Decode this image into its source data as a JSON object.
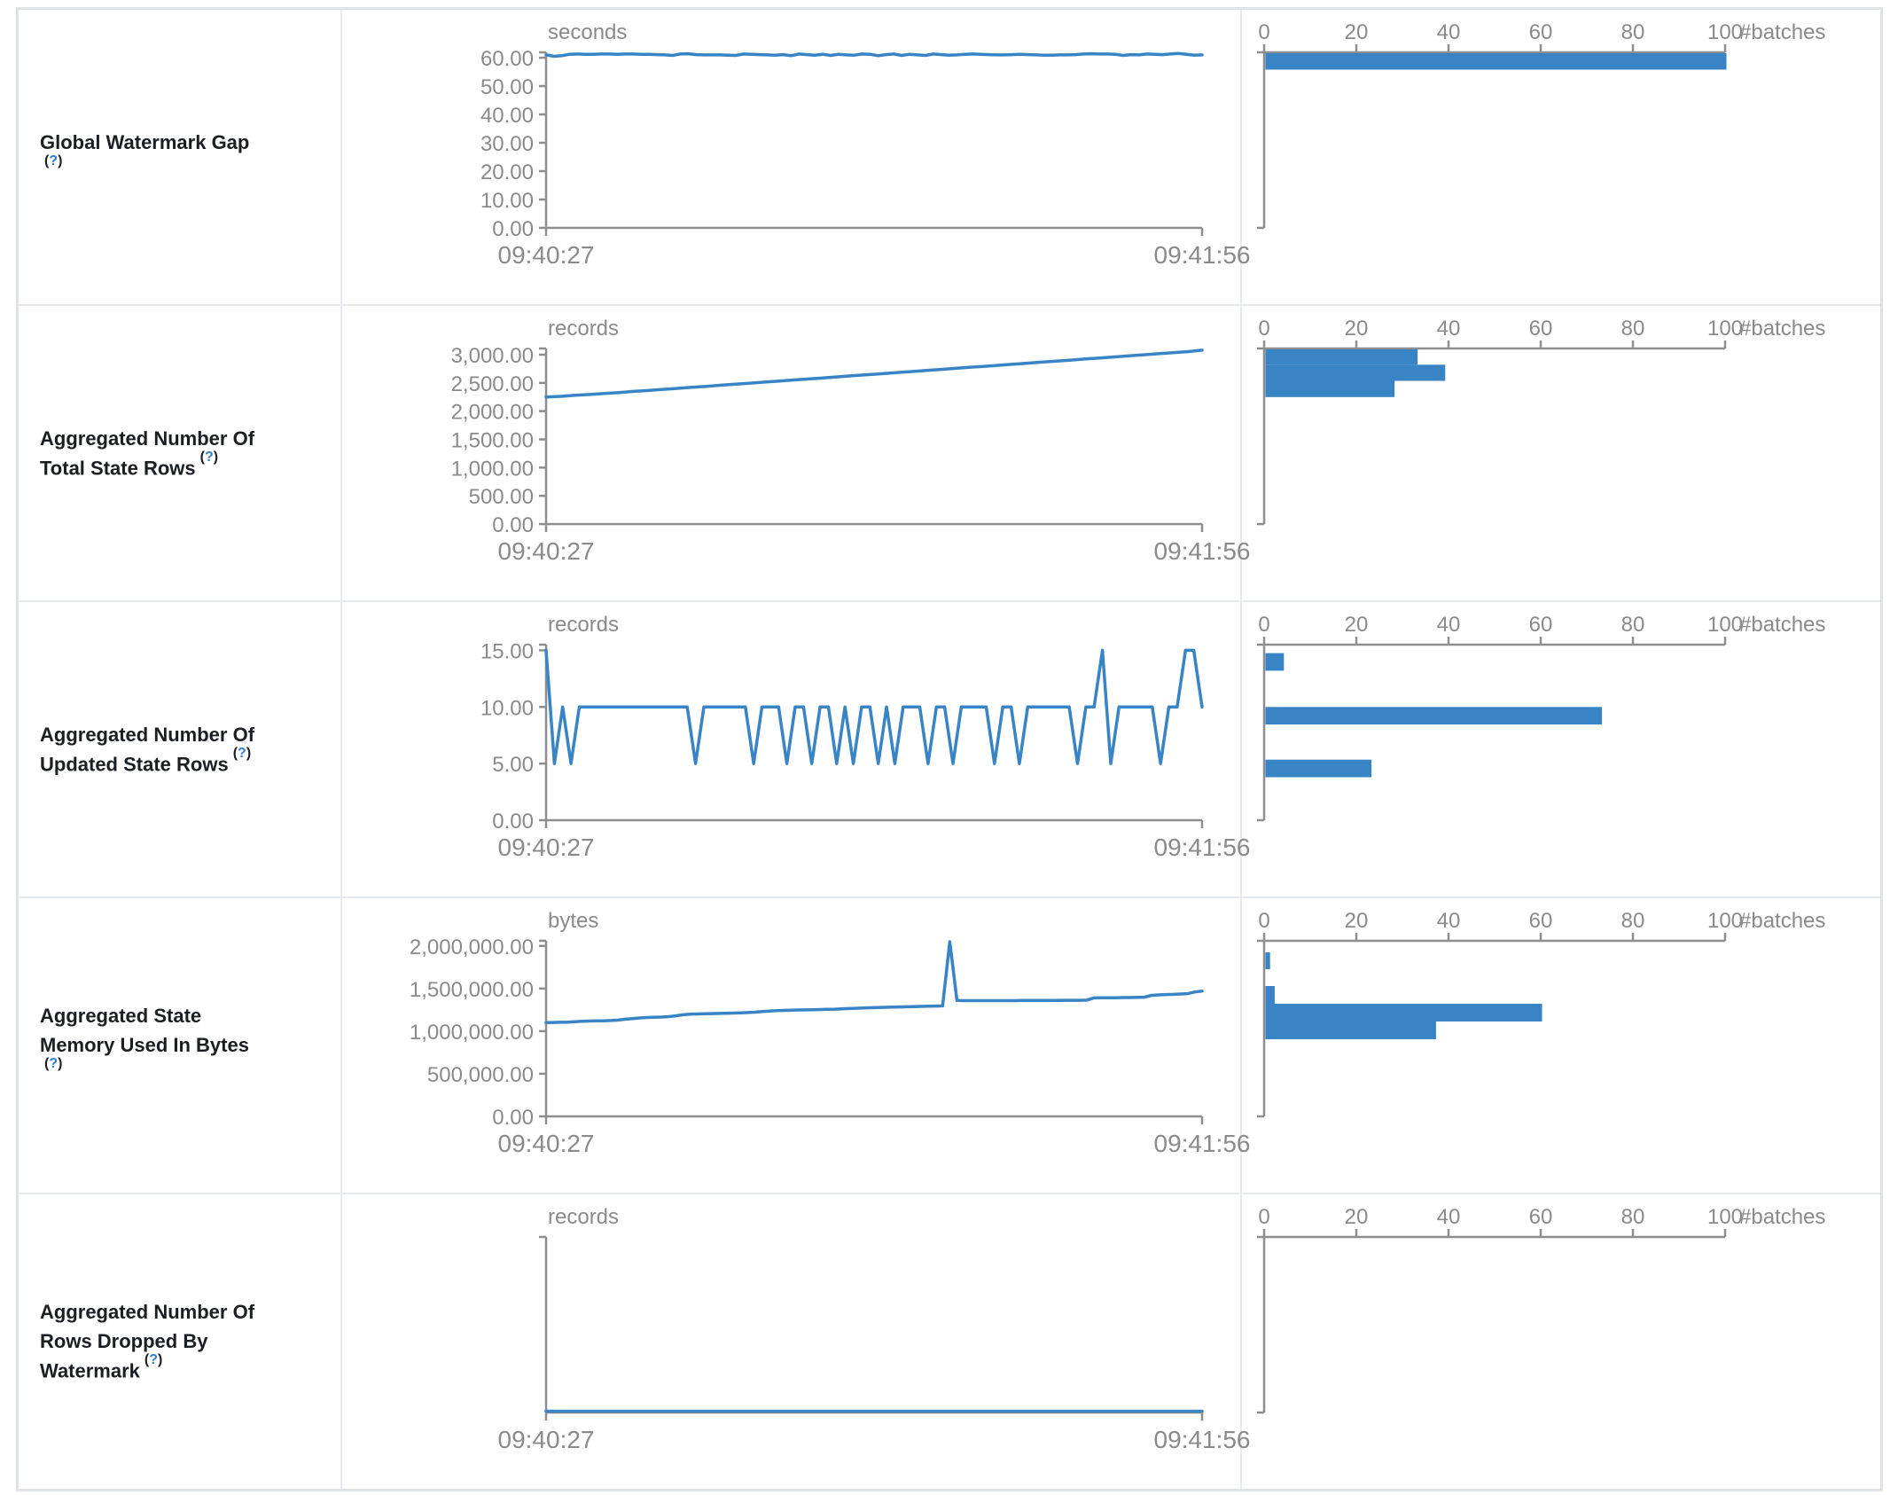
{
  "page": {
    "name": "structured-streaming-statistics"
  },
  "colors": {
    "series_blue": "#3884c4",
    "axis_gray": "#8e8e8e",
    "chart_text_gray": "#8a8a8a",
    "label_text": "#1b1e23",
    "help_link_blue": "#2e7fd4",
    "table_border": "#dfe3e8",
    "inner_border": "#e7eaee"
  },
  "help": {
    "open": "(",
    "q": "?",
    "close": ")"
  },
  "rows": [
    {
      "label": "Global Watermark Gap (?)",
      "label_lines": [
        "Global Watermark Gap"
      ],
      "help_own_line": true
    },
    {
      "label": "Aggregated Number Of Total State Rows (?)",
      "label_lines": [
        "Aggregated Number Of",
        "Total State Rows"
      ],
      "help_own_line": false
    },
    {
      "label": "Aggregated Number Of Updated State Rows (?)",
      "label_lines": [
        "Aggregated Number Of",
        "Updated State Rows"
      ],
      "help_own_line": false
    },
    {
      "label": "Aggregated State Memory Used In Bytes (?)",
      "label_lines": [
        "Aggregated State",
        "Memory Used In Bytes"
      ],
      "help_own_line": true
    },
    {
      "label": "Aggregated Number Of Rows Dropped By Watermark (?)",
      "label_lines": [
        "Aggregated Number Of",
        "Rows Dropped By",
        "Watermark"
      ],
      "help_own_line": false
    }
  ],
  "chart_data": [
    {
      "row_label": "Global Watermark Gap",
      "timeline": {
        "type": "line",
        "unit": "seconds",
        "ylim": [
          0,
          61.9
        ],
        "yticks": [
          0,
          10,
          20,
          30,
          40,
          50,
          60
        ],
        "x_range": [
          "09:40:27",
          "09:41:56"
        ],
        "values": [
          61.0,
          60.5,
          60.7,
          61.2,
          61.3,
          61.2,
          61.2,
          61.3,
          61.3,
          61.2,
          61.3,
          61.3,
          61.2,
          61.2,
          61.1,
          61.0,
          60.8,
          61.3,
          61.4,
          61.1,
          61.0,
          61.0,
          61.0,
          60.9,
          60.8,
          61.3,
          61.2,
          61.1,
          61.0,
          60.9,
          61.1,
          60.7,
          61.3,
          61.1,
          60.9,
          61.2,
          60.8,
          61.2,
          61.0,
          60.9,
          61.3,
          61.2,
          60.7,
          61.1,
          61.3,
          60.8,
          61.2,
          61.0,
          60.8,
          61.3,
          61.1,
          60.9,
          61.0,
          61.2,
          61.3,
          61.2,
          61.1,
          61.0,
          61.0,
          61.1,
          61.2,
          61.1,
          61.0,
          60.9,
          60.9,
          61.0,
          61.0,
          61.1,
          61.3,
          61.4,
          61.3,
          61.3,
          61.2,
          60.8,
          61.1,
          61.0,
          61.3,
          61.2,
          61.1,
          61.3,
          61.5,
          61.2,
          60.9,
          61.0
        ]
      },
      "histogram": {
        "type": "bar",
        "orientation": "horizontal",
        "xlabel": "#batches",
        "xticks": [
          0,
          20,
          40,
          60,
          80,
          100
        ],
        "bars": [
          {
            "bin": [
              55.8,
              61.9
            ],
            "count": 100
          }
        ]
      }
    },
    {
      "row_label": "Aggregated Number Of Total State Rows",
      "timeline": {
        "type": "line",
        "unit": "records",
        "ylim": [
          0,
          3110
        ],
        "yticks": [
          0,
          500,
          1000,
          1500,
          2000,
          2500,
          3000
        ],
        "x_range": [
          "09:40:27",
          "09:41:56"
        ],
        "values": [
          2250,
          2262,
          2280,
          2295,
          2313,
          2330,
          2349,
          2365,
          2386,
          2403,
          2422,
          2440,
          2459,
          2478,
          2496,
          2515,
          2533,
          2552,
          2570,
          2589,
          2608,
          2626,
          2645,
          2663,
          2682,
          2700,
          2719,
          2738,
          2756,
          2775,
          2793,
          2812,
          2831,
          2849,
          2868,
          2886,
          2905,
          2924,
          2942,
          2961,
          2979,
          2998,
          3017,
          3035,
          3054,
          3080
        ]
      },
      "histogram": {
        "type": "bar",
        "orientation": "horizontal",
        "xlabel": "#batches",
        "xticks": [
          0,
          20,
          40,
          60,
          80,
          100
        ],
        "bars": [
          {
            "bin": [
              2823,
              3110
            ],
            "count": 33
          },
          {
            "bin": [
              2537,
              2823
            ],
            "count": 39
          },
          {
            "bin": [
              2250,
              2537
            ],
            "count": 28
          }
        ]
      }
    },
    {
      "row_label": "Aggregated Number Of Updated State Rows",
      "timeline": {
        "type": "line",
        "unit": "records",
        "ylim": [
          0,
          15.5
        ],
        "yticks": [
          0,
          5,
          10,
          15
        ],
        "x_range": [
          "09:40:27",
          "09:41:56"
        ],
        "values": [
          15,
          5,
          10,
          5,
          10,
          10,
          10,
          10,
          10,
          10,
          10,
          10,
          10,
          10,
          10,
          10,
          10,
          10,
          5,
          10,
          10,
          10,
          10,
          10,
          10,
          5,
          10,
          10,
          10,
          5,
          10,
          10,
          5,
          10,
          10,
          5,
          10,
          5,
          10,
          10,
          5,
          10,
          5,
          10,
          10,
          10,
          5,
          10,
          10,
          5,
          10,
          10,
          10,
          10,
          5,
          10,
          10,
          5,
          10,
          10,
          10,
          10,
          10,
          10,
          5,
          10,
          10,
          15,
          5,
          10,
          10,
          10,
          10,
          10,
          5,
          10,
          10,
          15,
          15,
          10
        ]
      },
      "histogram": {
        "type": "bar",
        "orientation": "horizontal",
        "xlabel": "#batches",
        "xticks": [
          0,
          20,
          40,
          60,
          80,
          100
        ],
        "bars": [
          {
            "bin": [
              13.2,
              14.75
            ],
            "count": 4
          },
          {
            "bin": [
              8.45,
              10.0
            ],
            "count": 73
          },
          {
            "bin": [
              3.8,
              5.35
            ],
            "count": 23
          }
        ]
      }
    },
    {
      "row_label": "Aggregated State Memory Used In Bytes",
      "timeline": {
        "type": "line",
        "unit": "bytes",
        "ylim": [
          0,
          2060000
        ],
        "yticks": [
          0,
          500000,
          1000000,
          1500000,
          2000000
        ],
        "x_range": [
          "09:40:27",
          "09:41:56"
        ],
        "values": [
          1100000,
          1102000,
          1104000,
          1106000,
          1110000,
          1115000,
          1118000,
          1120000,
          1122000,
          1125000,
          1130000,
          1140000,
          1148000,
          1155000,
          1160000,
          1163000,
          1165000,
          1170000,
          1180000,
          1192000,
          1200000,
          1202000,
          1204000,
          1206000,
          1208000,
          1210000,
          1212000,
          1215000,
          1218000,
          1222000,
          1230000,
          1235000,
          1240000,
          1243000,
          1246000,
          1248000,
          1250000,
          1252000,
          1254000,
          1256000,
          1258000,
          1262000,
          1265000,
          1268000,
          1272000,
          1275000,
          1278000,
          1280000,
          1282000,
          1284000,
          1286000,
          1288000,
          1290000,
          1292000,
          1294000,
          1296000,
          2050000,
          1360000,
          1358000,
          1358000,
          1358000,
          1358000,
          1358000,
          1358000,
          1358000,
          1358000,
          1360000,
          1360000,
          1360000,
          1360000,
          1360000,
          1360000,
          1362000,
          1362000,
          1362000,
          1364000,
          1390000,
          1392000,
          1392000,
          1392000,
          1394000,
          1394000,
          1396000,
          1398000,
          1420000,
          1425000,
          1430000,
          1432000,
          1436000,
          1440000,
          1460000,
          1470000
        ]
      },
      "histogram": {
        "type": "bar",
        "orientation": "horizontal",
        "xlabel": "#batches",
        "xticks": [
          0,
          20,
          40,
          60,
          80,
          100
        ],
        "bars": [
          {
            "bin": [
              1727000,
              1925000
            ],
            "count": 1
          },
          {
            "bin": [
              1321000,
              1529000
            ],
            "count": 2
          },
          {
            "bin": [
              1113000,
              1321000
            ],
            "count": 60
          },
          {
            "bin": [
              905000,
              1113000
            ],
            "count": 37
          }
        ]
      }
    },
    {
      "row_label": "Aggregated Number Of Rows Dropped By Watermark",
      "timeline": {
        "type": "line",
        "unit": "records",
        "ylim": [
          0,
          1
        ],
        "yticks": [],
        "x_range": [
          "09:40:27",
          "09:41:56"
        ],
        "values": [
          0,
          0,
          0,
          0,
          0,
          0,
          0,
          0,
          0,
          0,
          0,
          0,
          0,
          0,
          0,
          0,
          0,
          0,
          0,
          0,
          0,
          0,
          0,
          0,
          0,
          0,
          0,
          0,
          0,
          0,
          0,
          0,
          0,
          0,
          0,
          0,
          0,
          0,
          0,
          0,
          0,
          0,
          0,
          0,
          0,
          0,
          0,
          0,
          0,
          0,
          0,
          0,
          0,
          0,
          0,
          0,
          0,
          0,
          0,
          0,
          0,
          0,
          0,
          0,
          0,
          0,
          0,
          0,
          0,
          0,
          0,
          0,
          0,
          0,
          0,
          0,
          0,
          0,
          0,
          0
        ]
      },
      "histogram": {
        "type": "bar",
        "orientation": "horizontal",
        "xlabel": "#batches",
        "xticks": [
          0,
          20,
          40,
          60,
          80,
          100
        ],
        "bars": []
      }
    }
  ]
}
